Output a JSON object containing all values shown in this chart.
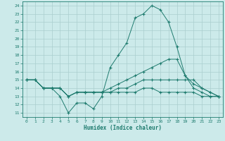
{
  "title": "",
  "xlabel": "Humidex (Indice chaleur)",
  "xlim": [
    -0.5,
    23.5
  ],
  "ylim": [
    10.5,
    24.5
  ],
  "xticks": [
    0,
    1,
    2,
    3,
    4,
    5,
    6,
    7,
    8,
    9,
    10,
    11,
    12,
    13,
    14,
    15,
    16,
    17,
    18,
    19,
    20,
    21,
    22,
    23
  ],
  "yticks": [
    11,
    12,
    13,
    14,
    15,
    16,
    17,
    18,
    19,
    20,
    21,
    22,
    23,
    24
  ],
  "bg_color": "#cceaea",
  "grid_color": "#aacece",
  "line_color": "#1e7b6e",
  "marker": "+",
  "lines": [
    {
      "x": [
        0,
        1,
        2,
        3,
        4,
        5,
        6,
        7,
        8,
        9,
        10,
        11,
        12,
        13,
        14,
        15,
        16,
        17,
        18,
        19,
        20,
        21,
        22,
        23
      ],
      "y": [
        15,
        15,
        14,
        14,
        13,
        11,
        12.2,
        12.2,
        11.5,
        13,
        16.5,
        18,
        19.5,
        22.5,
        23,
        24,
        23.5,
        22,
        19,
        15.5,
        14.5,
        14,
        13.5,
        13
      ]
    },
    {
      "x": [
        0,
        1,
        2,
        3,
        4,
        5,
        6,
        7,
        8,
        9,
        10,
        11,
        12,
        13,
        14,
        15,
        16,
        17,
        18,
        19,
        20,
        21,
        22,
        23
      ],
      "y": [
        15,
        15,
        14,
        14,
        14,
        13,
        13.5,
        13.5,
        13.5,
        13.5,
        14,
        14.5,
        15,
        15.5,
        16,
        16.5,
        17,
        17.5,
        17.5,
        15.5,
        14,
        13.5,
        13,
        13
      ]
    },
    {
      "x": [
        0,
        1,
        2,
        3,
        4,
        5,
        6,
        7,
        8,
        9,
        10,
        11,
        12,
        13,
        14,
        15,
        16,
        17,
        18,
        19,
        20,
        21,
        22,
        23
      ],
      "y": [
        15,
        15,
        14,
        14,
        14,
        13,
        13.5,
        13.5,
        13.5,
        13.5,
        13.5,
        14,
        14,
        14.5,
        15,
        15,
        15,
        15,
        15,
        15,
        15,
        14,
        13.5,
        13
      ]
    },
    {
      "x": [
        0,
        1,
        2,
        3,
        4,
        5,
        6,
        7,
        8,
        9,
        10,
        11,
        12,
        13,
        14,
        15,
        16,
        17,
        18,
        19,
        20,
        21,
        22,
        23
      ],
      "y": [
        15,
        15,
        14,
        14,
        14,
        13,
        13.5,
        13.5,
        13.5,
        13.5,
        13.5,
        13.5,
        13.5,
        13.5,
        14,
        14,
        13.5,
        13.5,
        13.5,
        13.5,
        13.5,
        13,
        13,
        13
      ]
    }
  ]
}
